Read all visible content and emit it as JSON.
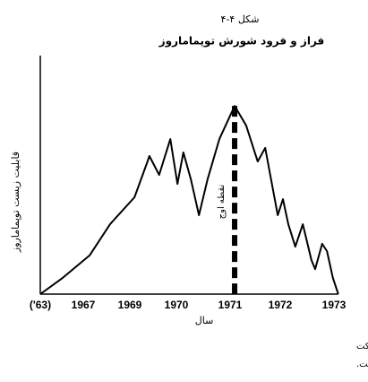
{
  "chart_data": {
    "type": "line",
    "figure_label": "شکل ۴-۴",
    "title": "فراز و فرود شورش توپماماروز",
    "y_label": "قابلیت زیست توپماماروز",
    "x_label": "سال",
    "x": [
      1963,
      1965.08,
      1967.27,
      1968.15,
      1969.1,
      1969.38,
      1969.42,
      1969.63,
      1969.87,
      1970.02,
      1970.13,
      1970.27,
      1970.42,
      1970.58,
      1970.8,
      1971.09,
      1971.32,
      1971.55,
      1971.7,
      1971.8,
      1971.95,
      1972.05,
      1972.15,
      1972.28,
      1972.42,
      1972.58,
      1972.65,
      1972.78,
      1972.87,
      1972.98,
      1973.08
    ],
    "series": [
      {
        "color": "#000000",
        "values": [
          0,
          6.8,
          16.2,
          29.3,
          40.6,
          55.6,
          57.9,
          50,
          65,
          46.2,
          59.4,
          48.1,
          33.1,
          48.1,
          65,
          78.9,
          70.7,
          55.6,
          61.3,
          50,
          33.1,
          39.8,
          29.3,
          19.9,
          29.3,
          14.3,
          10.5,
          21.1,
          18,
          6.8,
          0
        ]
      }
    ],
    "annotation": {
      "text": "نقطه اوج",
      "x": 1971.09,
      "y": 78.9
    },
    "xlim": [
      1963,
      1973.08
    ],
    "xticks": [
      {
        "value": 1963,
        "label": "('63)"
      },
      1967,
      1969,
      1970,
      1971,
      1972,
      1973
    ],
    "ylim": [
      0,
      100
    ],
    "note": [
      "نوت: طرح ها در نشان دادن فریکونسی یا تناوب فزاینده و دامنه سیر و انتقال حرکت",
      "ها، مبالغه آمیز است."
    ]
  }
}
